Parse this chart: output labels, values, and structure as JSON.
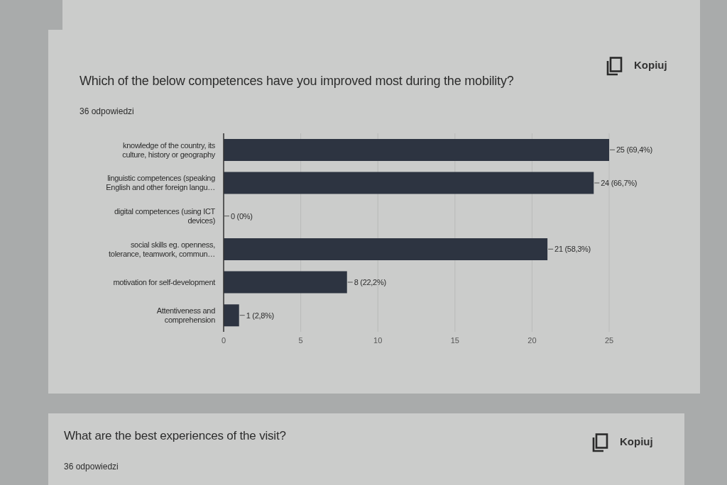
{
  "chart_data": [
    {
      "type": "bar",
      "orientation": "horizontal",
      "title": "Which of the below competences have you improved most during the mobility?",
      "subtitle": "36 odpowiedzi",
      "annotations": [
        "Kopiuj"
      ],
      "categories": [
        "knowledge of the country, its culture, history or geography",
        "linguistic competences (speaking English and other foreign langu…",
        "digital competences (using ICT devices)",
        "social skills eg. openness, tolerance, teamwork, commun…",
        "motivation for self-development",
        "Attentiveness and comprehension"
      ],
      "values": [
        25,
        24,
        0,
        21,
        8,
        1
      ],
      "color": "#2d3441",
      "value_labels": [
        "25 (69,4%)",
        "24 (66,7%)",
        "0 (0%)",
        "21 (58,3%)",
        "8 (22,2%)",
        "1 (2,8%)"
      ],
      "xlim": [
        0,
        25
      ],
      "xticks": [
        0,
        5,
        10,
        15,
        20,
        25
      ],
      "grid": "x"
    },
    {
      "type": "other",
      "title": "What are the best experiences of the visit?",
      "subtitle": "36 odpowiedzi",
      "annotations": [
        "Kopiuj"
      ]
    }
  ]
}
